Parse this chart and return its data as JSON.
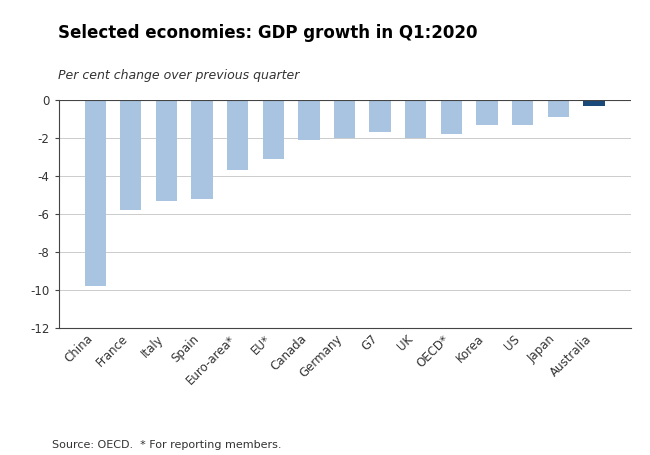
{
  "title": "Selected economies: GDP growth in Q1:2020",
  "subtitle": "Per cent change over previous quarter",
  "footnote": "Source: OECD.  * For reporting members.",
  "categories": [
    "China",
    "France",
    "Italy",
    "Spain",
    "Euro-area*",
    "EU*",
    "Canada",
    "Germany",
    "G7",
    "UK",
    "OECD*",
    "Korea",
    "US",
    "Japan",
    "Australia"
  ],
  "values": [
    -9.8,
    -5.8,
    -5.3,
    -5.2,
    -3.7,
    -3.1,
    -2.1,
    -2.0,
    -1.7,
    -2.0,
    -1.8,
    -1.3,
    -1.3,
    -0.9,
    -0.3
  ],
  "bar_colors": [
    "#a8c4e0",
    "#a8c4e0",
    "#a8c4e0",
    "#a8c4e0",
    "#a8c4e0",
    "#a8c4e0",
    "#a8c4e0",
    "#a8c4e0",
    "#a8c4e0",
    "#a8c4e0",
    "#a8c4e0",
    "#a8c4e0",
    "#a8c4e0",
    "#a8c4e0",
    "#1a4a7a"
  ],
  "ylim": [
    -12,
    0
  ],
  "yticks": [
    0,
    -2,
    -4,
    -6,
    -8,
    -10,
    -12
  ],
  "title_fontsize": 12,
  "subtitle_fontsize": 9,
  "footnote_fontsize": 8,
  "tick_fontsize": 8.5,
  "background_color": "#ffffff",
  "grid_color": "#cccccc",
  "spine_color": "#444444",
  "bar_width": 0.6
}
